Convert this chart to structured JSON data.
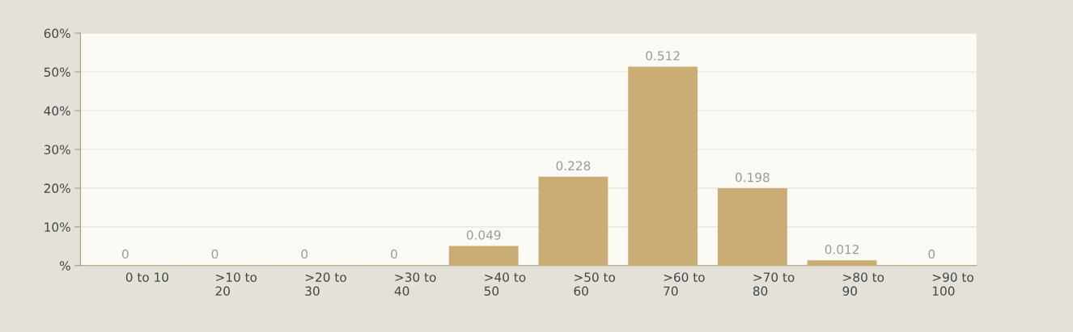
{
  "chart_data": {
    "type": "bar",
    "categories": [
      "0 to 10",
      ">10 to\n20",
      ">20 to\n30",
      ">30 to\n40",
      ">40 to\n50",
      ">50 to\n60",
      ">60 to\n70",
      ">70 to\n80",
      ">80 to\n90",
      ">90 to\n100"
    ],
    "values": [
      0,
      0,
      0,
      0,
      0.049,
      0.228,
      0.512,
      0.198,
      0.012,
      0
    ],
    "value_labels": [
      "0",
      "0",
      "0",
      "0",
      "0.049",
      "0.228",
      "0.512",
      "0.198",
      "0.012",
      "0"
    ],
    "color": "#c9ad74",
    "ylim": [
      0,
      0.6
    ],
    "yticks": [
      {
        "value": 0,
        "label": "%"
      },
      {
        "value": 0.1,
        "label": "10%"
      },
      {
        "value": 0.2,
        "label": "20%"
      },
      {
        "value": 0.3,
        "label": "30%"
      },
      {
        "value": 0.4,
        "label": "40%"
      },
      {
        "value": 0.5,
        "label": "50%"
      },
      {
        "value": 0.6,
        "label": "60%"
      }
    ],
    "grid": "y"
  }
}
